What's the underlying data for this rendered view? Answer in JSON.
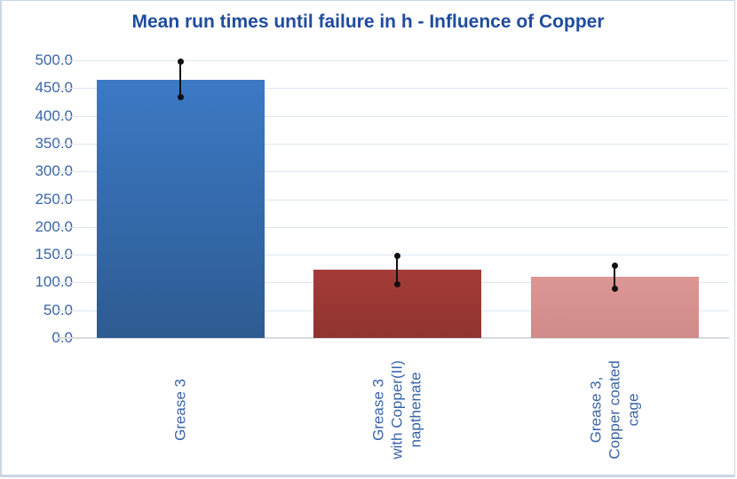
{
  "chart_data": {
    "type": "bar",
    "title": "Mean run times until failure in h - Influence of Copper",
    "xlabel": "",
    "ylabel": "",
    "unit": "h",
    "categories": [
      "Grease 3",
      "Grease 3\nwith Copper(II)\nnapthenate",
      "Grease 3,\nCopper coated\ncage"
    ],
    "values": [
      465,
      123,
      110
    ],
    "error_high": [
      497,
      148,
      130
    ],
    "error_low": [
      433,
      97,
      89
    ],
    "ylim": [
      0,
      500
    ],
    "ytick_labels": [
      "0.0",
      "50.0",
      "100.0",
      "150.0",
      "200.0",
      "250.0",
      "300.0",
      "350.0",
      "400.0",
      "450.0",
      "500.0"
    ],
    "grid": true,
    "legend": false,
    "bar_gradients": [
      [
        "#3C79C5",
        "#2E5B91"
      ],
      [
        "#A43C39",
        "#90332F"
      ],
      [
        "#DC9694",
        "#D08B89"
      ]
    ],
    "colors": {
      "title": "#1F4C9E",
      "axis_text": "#3A65A8",
      "gridline": "#DCE6F2",
      "baseline": "#D6DBE2",
      "error_bar": "#111111",
      "border": "#C9D6E3",
      "background": "#FFFFFF"
    }
  }
}
